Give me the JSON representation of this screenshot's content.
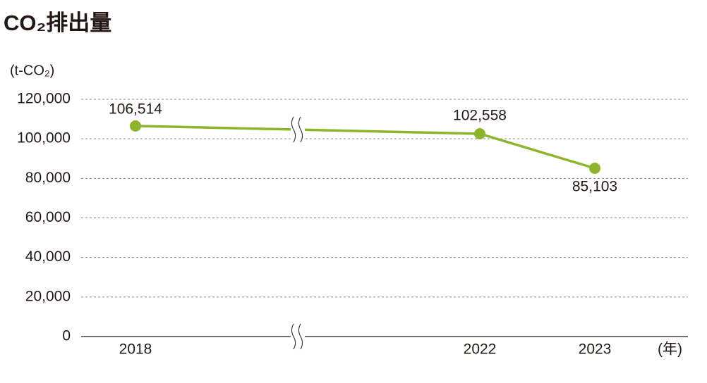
{
  "chart_data": {
    "type": "line",
    "title": "CO₂排出量",
    "y_label": "(t-CO₂)",
    "x_unit": "(年)",
    "categories": [
      "2018",
      "2022",
      "2023"
    ],
    "values": [
      106514,
      102558,
      85103
    ],
    "value_labels": [
      "106,514",
      "102,558",
      "85,103"
    ],
    "color": "#8cb52b",
    "ylim": [
      0,
      120000
    ],
    "yticks": [
      0,
      {
        "value": 20000,
        "label": "20,000"
      },
      {
        "value": 40000,
        "label": "40,000"
      },
      {
        "value": 60000,
        "label": "60,000"
      },
      {
        "value": 80000,
        "label": "80,000"
      },
      {
        "value": 100000,
        "label": "100,000"
      },
      {
        "value": 120000,
        "label": "120,000"
      }
    ],
    "grid": true
  }
}
